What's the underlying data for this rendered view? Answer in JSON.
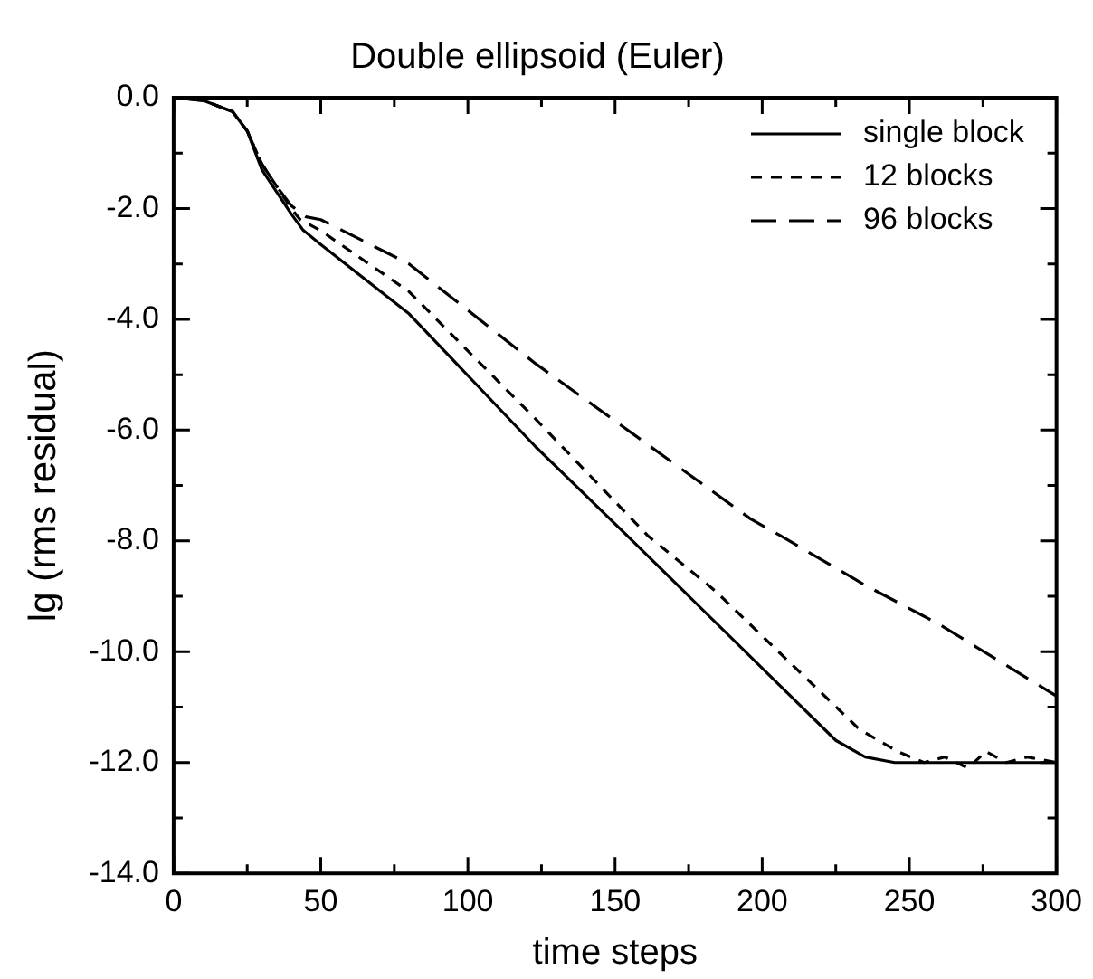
{
  "chart_data": {
    "type": "line",
    "title": "Double ellipsoid (Euler)",
    "xlabel": "time steps",
    "ylabel": "lg (rms residual)",
    "xlim": [
      0,
      300
    ],
    "ylim": [
      -14,
      0
    ],
    "xticks": [
      0,
      {
        "value": 25,
        "label": null
      },
      50,
      {
        "value": 75,
        "label": null
      },
      100,
      {
        "value": 125,
        "label": null
      },
      150,
      {
        "value": 175,
        "label": null
      },
      200,
      {
        "value": 225,
        "label": null
      },
      250,
      {
        "value": 275,
        "label": null
      },
      300
    ],
    "yticks": [
      {
        "value": -14,
        "label": "-14.0"
      },
      {
        "value": -13,
        "label": null
      },
      {
        "value": -12,
        "label": "-12.0"
      },
      {
        "value": -11,
        "label": null
      },
      {
        "value": -10,
        "label": "-10.0"
      },
      {
        "value": -9,
        "label": null
      },
      {
        "value": -8,
        "label": "-8.0"
      },
      {
        "value": -7,
        "label": null
      },
      {
        "value": -6,
        "label": "-6.0"
      },
      {
        "value": -5,
        "label": null
      },
      {
        "value": -4,
        "label": "-4.0"
      },
      {
        "value": -3,
        "label": null
      },
      {
        "value": -2,
        "label": "-2.0"
      },
      {
        "value": -1,
        "label": null
      },
      {
        "value": 0,
        "label": "0.0"
      }
    ],
    "grid": false,
    "legend": "top right",
    "marker": "none",
    "series": [
      {
        "name": "single block",
        "color": "#000000",
        "line_style": "solid",
        "x": [
          0,
          10,
          20,
          25,
          30,
          35,
          40,
          44,
          50,
          80,
          123,
          154,
          225,
          235,
          245,
          260,
          280,
          300
        ],
        "values": [
          0,
          -0.05,
          -0.25,
          -0.6,
          -1.3,
          -1.7,
          -2.1,
          -2.39,
          -2.65,
          -3.9,
          -6.3,
          -7.9,
          -11.6,
          -11.9,
          -12.0,
          -12.0,
          -12.0,
          -12.0
        ]
      },
      {
        "name": "12 blocks",
        "color": "#000000",
        "line_style": "dotted",
        "x": [
          0,
          10,
          20,
          25,
          30,
          35,
          40,
          43,
          50,
          80,
          123,
          161,
          184,
          233,
          246,
          255,
          262,
          270,
          276,
          283,
          290,
          300
        ],
        "values": [
          0,
          -0.05,
          -0.25,
          -0.6,
          -1.2,
          -1.6,
          -2.0,
          -2.2,
          -2.4,
          -3.5,
          -5.8,
          -7.9,
          -8.9,
          -11.4,
          -11.8,
          -12.0,
          -11.9,
          -12.1,
          -11.8,
          -12.0,
          -11.9,
          -12.0
        ]
      },
      {
        "name": "96 blocks",
        "color": "#000000",
        "line_style": "dashed",
        "x": [
          0,
          10,
          20,
          25,
          30,
          35,
          40,
          45,
          50,
          80,
          123,
          196,
          206,
          235,
          260,
          300
        ],
        "values": [
          0,
          -0.05,
          -0.25,
          -0.6,
          -1.2,
          -1.6,
          -1.95,
          -2.15,
          -2.2,
          -3.0,
          -4.8,
          -7.6,
          -7.9,
          -8.8,
          -9.5,
          -10.8
        ]
      }
    ]
  }
}
